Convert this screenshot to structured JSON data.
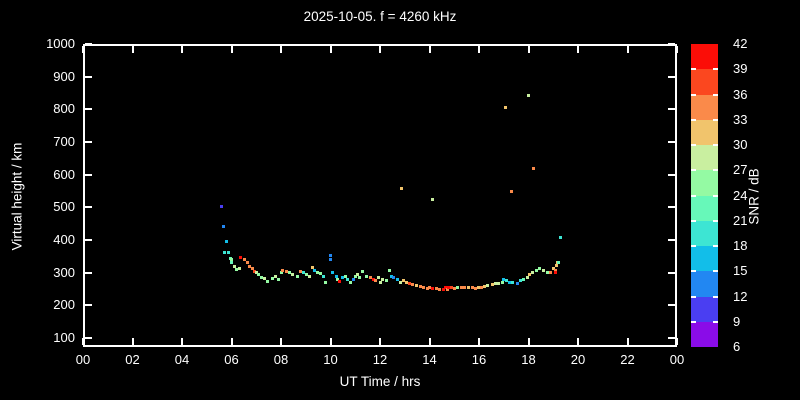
{
  "title": "2025-10-05. f = 4260 kHz",
  "colors": {
    "background": "#000000",
    "foreground": "#ffffff"
  },
  "x_axis": {
    "label": "UT Time / hrs",
    "ticks": [
      {
        "hour": 0,
        "label": "00"
      },
      {
        "hour": 2,
        "label": "02"
      },
      {
        "hour": 4,
        "label": "04"
      },
      {
        "hour": 6,
        "label": "06"
      },
      {
        "hour": 8,
        "label": "08"
      },
      {
        "hour": 10,
        "label": "10"
      },
      {
        "hour": 12,
        "label": "12"
      },
      {
        "hour": 14,
        "label": "14"
      },
      {
        "hour": 16,
        "label": "16"
      },
      {
        "hour": 18,
        "label": "18"
      },
      {
        "hour": 20,
        "label": "20"
      },
      {
        "hour": 22,
        "label": "22"
      },
      {
        "hour": 24,
        "label": "00"
      }
    ]
  },
  "y_axis": {
    "label": "Virtual height / km",
    "ticks": [
      100,
      200,
      300,
      400,
      500,
      600,
      700,
      800,
      900,
      1000
    ]
  },
  "colorbar": {
    "label": "SNR / dB",
    "tick_labels": [
      6,
      9,
      12,
      15,
      18,
      21,
      24,
      27,
      30,
      33,
      36,
      39,
      42
    ],
    "colors_bottom_to_top": [
      "#8A0CE8",
      "#4A3EF2",
      "#2287F2",
      "#12BEE9",
      "#3DE5D3",
      "#67F8B9",
      "#94FAA3",
      "#C9EFA0",
      "#F1C46C",
      "#FA8A4A",
      "#FB471F",
      "#FB0D07"
    ]
  },
  "chart_data": {
    "type": "scatter",
    "title": "2025-10-05. f = 4260 kHz",
    "xlabel": "UT Time / hrs",
    "ylabel": "Virtual height / km",
    "xlim_hours": [
      0,
      24
    ],
    "ylim_km": [
      72,
      1000
    ],
    "grid": false,
    "colormap": {
      "min": 6,
      "max": 42,
      "step": 3,
      "label": "SNR / dB"
    },
    "point_format": [
      "ut_hours",
      "virtual_height_km",
      "snr_db"
    ],
    "points": [
      [
        5.58,
        504,
        10
      ],
      [
        5.66,
        440,
        13
      ],
      [
        5.78,
        394,
        16
      ],
      [
        5.7,
        363,
        19
      ],
      [
        5.86,
        363,
        19
      ],
      [
        5.94,
        342,
        22
      ],
      [
        6.02,
        339,
        25
      ],
      [
        5.98,
        330,
        22
      ],
      [
        6.14,
        320,
        28
      ],
      [
        6.22,
        311,
        25
      ],
      [
        6.34,
        314,
        28
      ],
      [
        6.38,
        345,
        40
      ],
      [
        6.51,
        339,
        34
      ],
      [
        6.63,
        330,
        34
      ],
      [
        6.71,
        320,
        34
      ],
      [
        6.83,
        314,
        34
      ],
      [
        6.91,
        305,
        37
      ],
      [
        7.03,
        299,
        28
      ],
      [
        7.11,
        293,
        25
      ],
      [
        7.23,
        284,
        25
      ],
      [
        7.35,
        281,
        28
      ],
      [
        7.47,
        274,
        25
      ],
      [
        7.64,
        281,
        25
      ],
      [
        7.76,
        287,
        28
      ],
      [
        7.88,
        278,
        25
      ],
      [
        8.04,
        302,
        25
      ],
      [
        8.08,
        308,
        34
      ],
      [
        8.24,
        305,
        34
      ],
      [
        8.36,
        299,
        25
      ],
      [
        8.48,
        293,
        28
      ],
      [
        8.65,
        287,
        25
      ],
      [
        8.77,
        305,
        34
      ],
      [
        8.89,
        299,
        19
      ],
      [
        9.05,
        293,
        25
      ],
      [
        9.17,
        287,
        28
      ],
      [
        9.29,
        317,
        31
      ],
      [
        9.37,
        308,
        16
      ],
      [
        9.49,
        302,
        25
      ],
      [
        9.58,
        296,
        25
      ],
      [
        9.7,
        287,
        19
      ],
      [
        9.78,
        271,
        25
      ],
      [
        9.98,
        354,
        13
      ],
      [
        10.02,
        339,
        13
      ],
      [
        10.1,
        302,
        16
      ],
      [
        10.26,
        287,
        16
      ],
      [
        10.3,
        278,
        25
      ],
      [
        10.38,
        274,
        40
      ],
      [
        10.47,
        284,
        16
      ],
      [
        10.59,
        287,
        25
      ],
      [
        10.67,
        278,
        19
      ],
      [
        10.79,
        271,
        25
      ],
      [
        10.91,
        278,
        13
      ],
      [
        10.99,
        287,
        25
      ],
      [
        11.11,
        293,
        28
      ],
      [
        11.19,
        284,
        25
      ],
      [
        11.31,
        305,
        25
      ],
      [
        11.47,
        287,
        25
      ],
      [
        11.6,
        284,
        34
      ],
      [
        11.72,
        278,
        40
      ],
      [
        11.8,
        275,
        34
      ],
      [
        11.92,
        284,
        28
      ],
      [
        12.0,
        271,
        28
      ],
      [
        12.12,
        278,
        28
      ],
      [
        12.28,
        275,
        25
      ],
      [
        12.4,
        308,
        25
      ],
      [
        12.48,
        287,
        16
      ],
      [
        12.53,
        284,
        13
      ],
      [
        12.69,
        278,
        16
      ],
      [
        12.81,
        271,
        28
      ],
      [
        12.93,
        275,
        31
      ],
      [
        13.09,
        271,
        31
      ],
      [
        13.21,
        268,
        37
      ],
      [
        13.33,
        265,
        34
      ],
      [
        13.49,
        262,
        31
      ],
      [
        13.62,
        259,
        34
      ],
      [
        13.74,
        256,
        34
      ],
      [
        13.9,
        253,
        34
      ],
      [
        14.02,
        256,
        34
      ],
      [
        14.14,
        253,
        40
      ],
      [
        14.3,
        253,
        34
      ],
      [
        14.42,
        250,
        34
      ],
      [
        14.55,
        247,
        40
      ],
      [
        14.63,
        256,
        40
      ],
      [
        14.71,
        250,
        34
      ],
      [
        14.75,
        256,
        40
      ],
      [
        14.87,
        256,
        37
      ],
      [
        15.03,
        253,
        34
      ],
      [
        15.15,
        256,
        25
      ],
      [
        15.31,
        256,
        34
      ],
      [
        15.43,
        256,
        34
      ],
      [
        15.56,
        256,
        31
      ],
      [
        15.72,
        256,
        34
      ],
      [
        15.84,
        253,
        34
      ],
      [
        15.96,
        256,
        31
      ],
      [
        16.12,
        256,
        34
      ],
      [
        16.24,
        259,
        31
      ],
      [
        16.36,
        262,
        28
      ],
      [
        16.53,
        265,
        31
      ],
      [
        16.65,
        268,
        28
      ],
      [
        16.77,
        268,
        28
      ],
      [
        16.93,
        271,
        25
      ],
      [
        16.97,
        278,
        16
      ],
      [
        17.13,
        275,
        19
      ],
      [
        17.25,
        271,
        16
      ],
      [
        17.37,
        271,
        19
      ],
      [
        17.54,
        268,
        13
      ],
      [
        17.66,
        275,
        19
      ],
      [
        17.78,
        278,
        22
      ],
      [
        17.94,
        284,
        28
      ],
      [
        18.06,
        293,
        31
      ],
      [
        18.18,
        302,
        28
      ],
      [
        18.34,
        308,
        25
      ],
      [
        18.46,
        314,
        25
      ],
      [
        18.59,
        308,
        28
      ],
      [
        18.75,
        302,
        25
      ],
      [
        18.87,
        299,
        34
      ],
      [
        18.99,
        314,
        31
      ],
      [
        19.11,
        308,
        34
      ],
      [
        19.11,
        299,
        40
      ],
      [
        19.15,
        323,
        31
      ],
      [
        19.19,
        332,
        31
      ],
      [
        19.23,
        332,
        22
      ],
      [
        19.31,
        409,
        19
      ],
      [
        12.85,
        559,
        32
      ],
      [
        14.14,
        525,
        28
      ],
      [
        17.09,
        807,
        32
      ],
      [
        17.33,
        550,
        34
      ],
      [
        18.02,
        841,
        28
      ],
      [
        18.22,
        620,
        34
      ]
    ]
  }
}
